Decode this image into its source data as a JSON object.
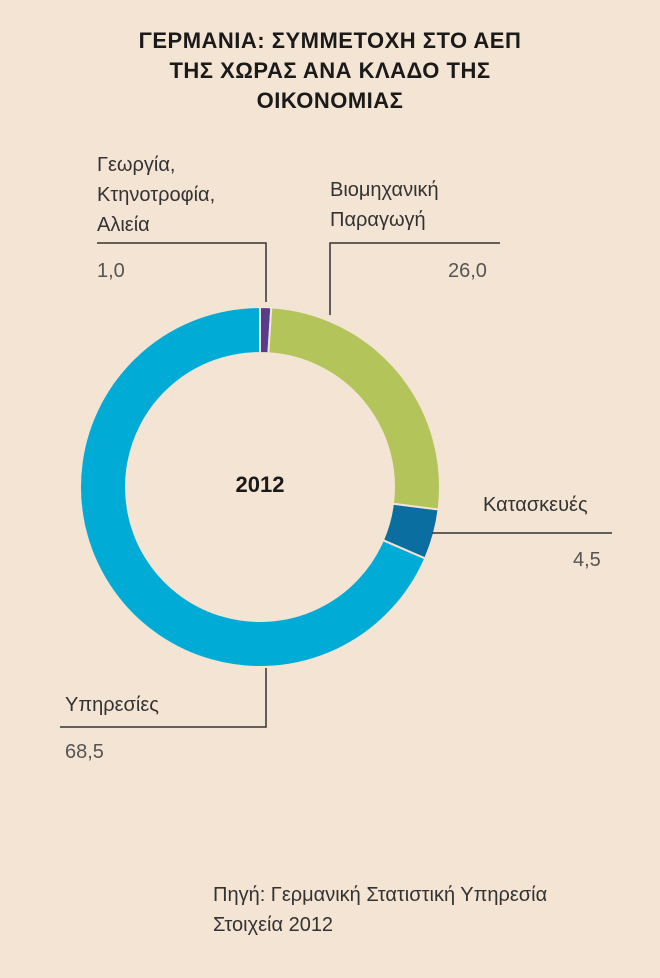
{
  "title": [
    "ΓΕΡΜΑΝΙΑ: ΣΥΜΜΕΤΟΧΗ ΣΤΟ ΑΕΠ",
    "ΤΗΣ ΧΩΡΑΣ ΑΝΑ ΚΛΑΔΟ ΤΗΣ",
    "ΟΙΚΟΝΟΜΙΑΣ"
  ],
  "chart_data": {
    "type": "pie",
    "variant": "donut",
    "center_label": "2012",
    "slices": [
      {
        "label_lines": [
          "Γεωργία,",
          "Κτηνοτροφία,",
          "Αλιεία"
        ],
        "value": 1.0,
        "value_label": "1,0",
        "color": "#5a3b8c"
      },
      {
        "label_lines": [
          "Βιομηχανική",
          "Παραγωγή"
        ],
        "value": 26.0,
        "value_label": "26,0",
        "color": "#b3c45a"
      },
      {
        "label_lines": [
          "Κατασκευές"
        ],
        "value": 4.5,
        "value_label": "4,5",
        "color": "#0a6fa0"
      },
      {
        "label_lines": [
          "Υπηρεσίες"
        ],
        "value": 68.5,
        "value_label": "68,5",
        "color": "#00acd6"
      }
    ]
  },
  "source": [
    "Πηγή: Γερμανική Στατιστική Υπηρεσία",
    "Στοιχεία 2012"
  ],
  "colors": {
    "background": "#f4e4d3",
    "leader_line": "#333333",
    "separator": "#f4e4d3"
  }
}
